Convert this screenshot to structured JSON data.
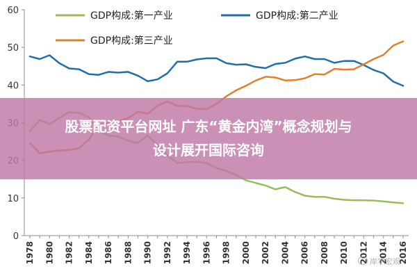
{
  "chart_data": {
    "type": "line",
    "xlabel": "",
    "ylabel": "",
    "ylim": [
      0,
      60
    ],
    "yticks": [
      0,
      10,
      20,
      30,
      40,
      50,
      60
    ],
    "x": [
      1978,
      1979,
      1980,
      1981,
      1982,
      1983,
      1984,
      1985,
      1986,
      1987,
      1988,
      1989,
      1990,
      1991,
      1992,
      1993,
      1994,
      1995,
      1996,
      1997,
      1998,
      1999,
      2000,
      2001,
      2002,
      2003,
      2004,
      2005,
      2006,
      2007,
      2008,
      2009,
      2010,
      2011,
      2012,
      2013,
      2014,
      2015,
      2016
    ],
    "xtick_labels": [
      "1978",
      "1980",
      "1982",
      "1984",
      "1986",
      "1988",
      "1990",
      "1992",
      "1994",
      "1996",
      "1998",
      "2000",
      "2002",
      "2004",
      "2006",
      "2008",
      "2010",
      "2012",
      "2014",
      "2016"
    ],
    "grid": false,
    "legend_position": "top",
    "series": [
      {
        "name": "GDP构成:第一产业",
        "color": "#9bbb59",
        "values": [
          27.7,
          30.7,
          29.6,
          31.3,
          32.8,
          32.6,
          31.5,
          27.9,
          26.6,
          26.3,
          25.2,
          24.6,
          26.6,
          24.0,
          21.3,
          19.3,
          19.5,
          19.6,
          19.3,
          17.9,
          17.2,
          16.1,
          14.7,
          14.0,
          13.3,
          12.3,
          12.9,
          11.6,
          10.6,
          10.3,
          10.3,
          9.8,
          9.5,
          9.4,
          9.4,
          9.3,
          9.1,
          8.8,
          8.6
        ]
      },
      {
        "name": "GDP构成:第二产业",
        "color": "#1f6fa8",
        "values": [
          47.6,
          46.9,
          47.9,
          45.8,
          44.4,
          44.2,
          42.9,
          42.7,
          43.5,
          43.3,
          43.5,
          42.5,
          41.0,
          41.5,
          43.1,
          46.2,
          46.2,
          46.8,
          47.1,
          47.1,
          45.8,
          45.4,
          45.5,
          44.8,
          44.5,
          45.6,
          45.9,
          47.0,
          47.6,
          46.9,
          46.9,
          45.9,
          46.4,
          46.4,
          45.3,
          44.0,
          43.1,
          40.9,
          39.8
        ]
      },
      {
        "name": "GDP构成:第三产业",
        "color": "#e0802b",
        "values": [
          24.6,
          21.9,
          22.3,
          22.6,
          22.7,
          23.2,
          25.5,
          29.4,
          29.8,
          30.4,
          31.2,
          32.9,
          32.4,
          34.5,
          35.6,
          34.5,
          34.4,
          33.7,
          33.6,
          35.0,
          37.0,
          38.6,
          39.8,
          41.2,
          42.2,
          42.0,
          41.2,
          41.3,
          41.8,
          42.9,
          42.8,
          44.3,
          44.1,
          44.2,
          45.5,
          46.9,
          48.0,
          50.5,
          51.6
        ]
      }
    ]
  },
  "banner": {
    "line1": "股票配资平台网址 广东“黄金内湾”概念规划与",
    "line2": "设计展开国际咨询"
  },
  "watermark": "岸宇宏观"
}
